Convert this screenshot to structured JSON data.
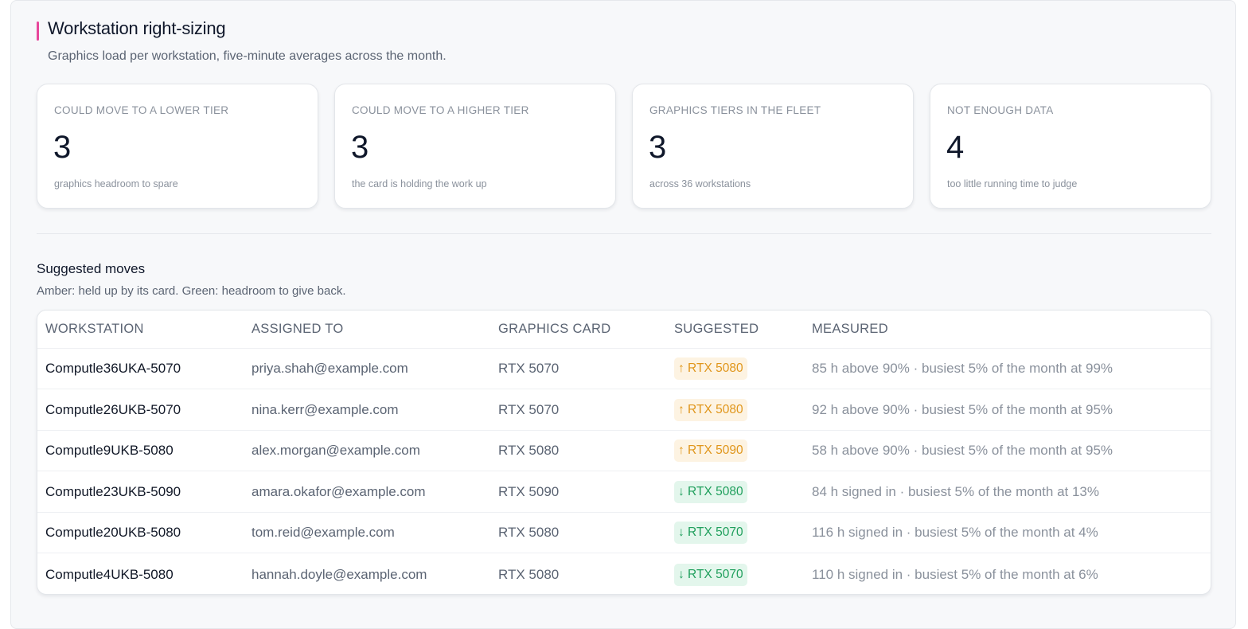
{
  "header": {
    "title": "Workstation right-sizing",
    "subtitle": "Graphics load per workstation, five-minute averages across the month.",
    "accent_color": "#e8479b"
  },
  "cards": [
    {
      "label": "COULD MOVE TO A LOWER TIER",
      "value": "3",
      "note": "graphics headroom to spare"
    },
    {
      "label": "COULD MOVE TO A HIGHER TIER",
      "value": "3",
      "note": "the card is holding the work up"
    },
    {
      "label": "GRAPHICS TIERS IN THE FLEET",
      "value": "3",
      "note": "across 36 workstations"
    },
    {
      "label": "NOT ENOUGH DATA",
      "value": "4",
      "note": "too little running time to judge"
    }
  ],
  "moves": {
    "title": "Suggested moves",
    "note": "Amber: held up by its card. Green: headroom to give back.",
    "columns": [
      "WORKSTATION",
      "ASSIGNED TO",
      "GRAPHICS CARD",
      "SUGGESTED",
      "MEASURED"
    ],
    "rows": [
      {
        "workstation": "Computle36UKA-5070",
        "assigned_to": "priya.shah@example.com",
        "card": "RTX 5070",
        "suggested": "↑ RTX 5080",
        "direction": "up",
        "measured": "85 h above 90% · busiest 5% of the month at 99%"
      },
      {
        "workstation": "Computle26UKB-5070",
        "assigned_to": "nina.kerr@example.com",
        "card": "RTX 5070",
        "suggested": "↑ RTX 5080",
        "direction": "up",
        "measured": "92 h above 90% · busiest 5% of the month at 95%"
      },
      {
        "workstation": "Computle9UKB-5080",
        "assigned_to": "alex.morgan@example.com",
        "card": "RTX 5080",
        "suggested": "↑ RTX 5090",
        "direction": "up",
        "measured": "58 h above 90% · busiest 5% of the month at 95%"
      },
      {
        "workstation": "Computle23UKB-5090",
        "assigned_to": "amara.okafor@example.com",
        "card": "RTX 5090",
        "suggested": "↓ RTX 5080",
        "direction": "down",
        "measured": "84 h signed in · busiest 5% of the month at 13%"
      },
      {
        "workstation": "Computle20UKB-5080",
        "assigned_to": "tom.reid@example.com",
        "card": "RTX 5080",
        "suggested": "↓ RTX 5070",
        "direction": "down",
        "measured": "116 h signed in · busiest 5% of the month at 4%"
      },
      {
        "workstation": "Computle4UKB-5080",
        "assigned_to": "hannah.doyle@example.com",
        "card": "RTX 5080",
        "suggested": "↓ RTX 5070",
        "direction": "down",
        "measured": "110 h signed in · busiest 5% of the month at 6%"
      }
    ]
  },
  "colors": {
    "up_badge_text": "#e0961b",
    "up_badge_bg": "#fdf3e2",
    "down_badge_text": "#1f9f5c",
    "down_badge_bg": "#e3f6ec"
  }
}
